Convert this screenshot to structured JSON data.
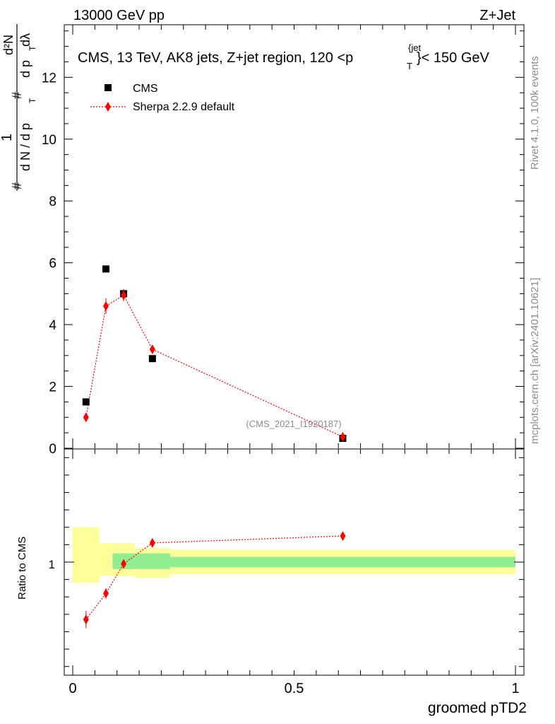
{
  "header": {
    "left": "13000 GeV pp",
    "right": "Z+Jet"
  },
  "side_labels": {
    "rivet": "Rivet 4.1.0,  100k events",
    "mcplots": "mcplots.cern.ch [arXiv:2401.10621]"
  },
  "chart_data": [
    {
      "type": "scatter",
      "panel": "main",
      "title_main": "CMS, 13 TeV, AK8 jets, Z+jet region, 120 <p",
      "title_sub": "T",
      "title_sup": "{jet",
      "title_tail": "}< 150 GeV",
      "ylabel": "1/N dN/dp_T d^2N/dp_T dλ",
      "ylabel_parts": {
        "prefix": "#",
        "num_one": "1",
        "den_left": "d N / d p",
        "den_left_sub": "T",
        "num_right": "d²N",
        "den_right": "d p",
        "den_right_sub": "T",
        "den_right_tail": "dλ",
        "hash": "#"
      },
      "xlim": [
        0,
        1
      ],
      "ylim": [
        0,
        13.7
      ],
      "yticks": [
        0,
        2,
        4,
        6,
        8,
        10,
        12
      ],
      "watermark": "(CMS_2021_I1920187)",
      "legend_position": "top-left",
      "series": [
        {
          "name": "CMS",
          "marker": "square",
          "color": "#000000",
          "x": [
            0.03,
            0.075,
            0.115,
            0.18,
            0.61
          ],
          "y": [
            1.5,
            5.8,
            5.0,
            2.9,
            0.32
          ]
        },
        {
          "name": "Sherpa 2.2.9 default",
          "marker": "diamond",
          "color": "#ff0000",
          "line": "dotted",
          "x": [
            0.03,
            0.075,
            0.115,
            0.18,
            0.61
          ],
          "y": [
            1.0,
            4.6,
            4.95,
            3.2,
            0.37
          ],
          "yerr": [
            0.08,
            0.25,
            0.2,
            0.1,
            0.03
          ]
        }
      ]
    },
    {
      "type": "scatter",
      "panel": "ratio",
      "ylabel": "Ratio to CMS",
      "xlabel": "groomed pTD2",
      "xlim": [
        0,
        1
      ],
      "ylim": [
        0.35,
        1.65
      ],
      "yticks": [
        1
      ],
      "yticklabels": [
        "1"
      ],
      "xticks": [
        0,
        0.5,
        1
      ],
      "xticklabels": [
        "0",
        "0.5",
        "1"
      ],
      "bands": [
        {
          "x0": 0.0,
          "x1": 0.06,
          "yellow": [
            0.88,
            1.2
          ],
          "green": null
        },
        {
          "x0": 0.06,
          "x1": 0.09,
          "yellow": [
            0.92,
            1.11
          ],
          "green": null
        },
        {
          "x0": 0.09,
          "x1": 0.14,
          "yellow": [
            0.92,
            1.11
          ],
          "green": [
            0.96,
            1.05
          ]
        },
        {
          "x0": 0.14,
          "x1": 0.22,
          "yellow": [
            0.91,
            1.08
          ],
          "green": [
            0.96,
            1.05
          ]
        },
        {
          "x0": 0.22,
          "x1": 1.0,
          "yellow": [
            0.93,
            1.07
          ],
          "green": [
            0.97,
            1.03
          ]
        }
      ],
      "series": [
        {
          "name": "Sherpa 2.2.9 default",
          "marker": "diamond",
          "color": "#ff0000",
          "x": [
            0.03,
            0.075,
            0.115,
            0.18,
            0.61
          ],
          "y": [
            0.67,
            0.82,
            0.99,
            1.11,
            1.15
          ],
          "yerr": [
            0.05,
            0.03,
            0.02,
            0.02,
            0.02
          ]
        }
      ]
    }
  ]
}
